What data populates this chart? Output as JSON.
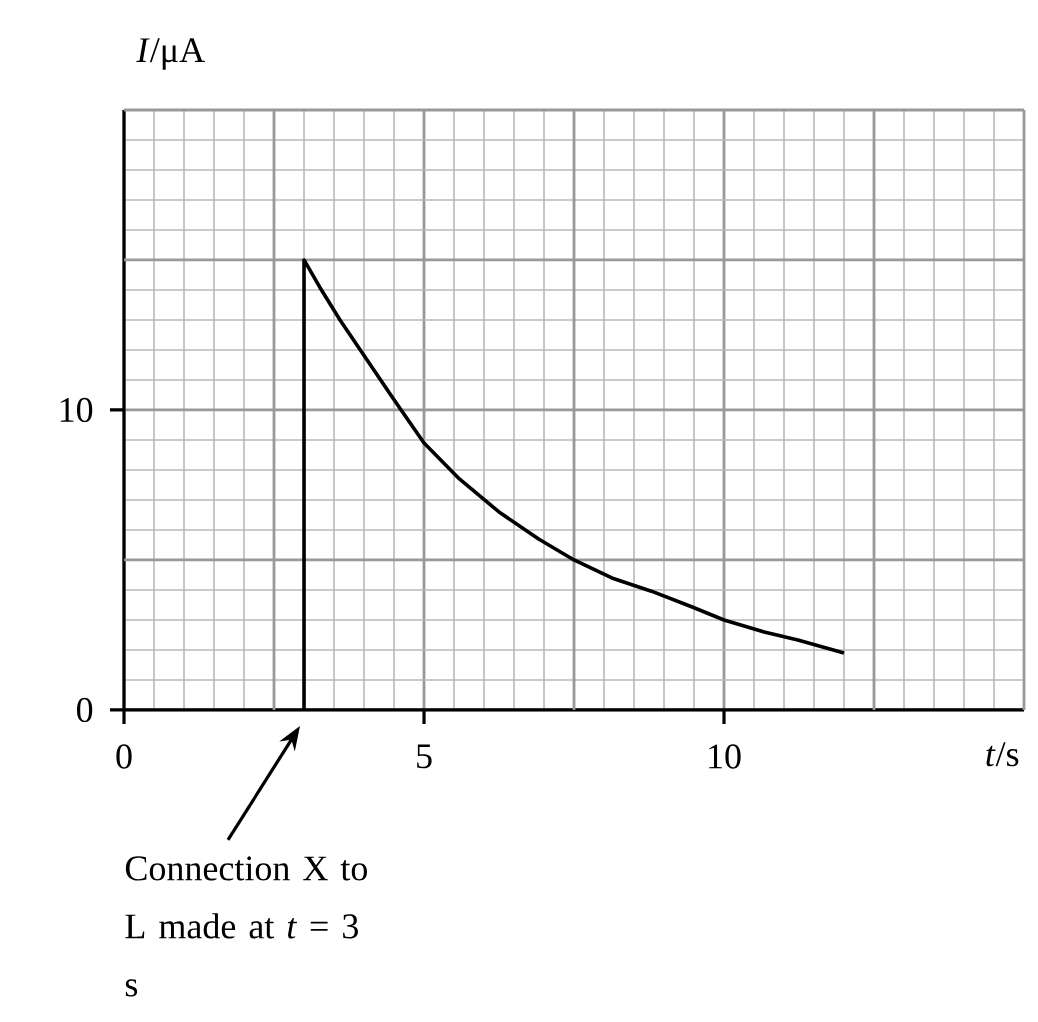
{
  "chart_data": {
    "type": "line",
    "xlabel": "*t*/s",
    "ylabel": "*I*/μA",
    "x": [
      3,
      3,
      3.26,
      3.6,
      4.04,
      4.48,
      5,
      5.59,
      6.25,
      6.91,
      7.5,
      8.13,
      8.79,
      9.46,
      10,
      10.67,
      11.23,
      12
    ],
    "series": [
      {
        "color": "#000000",
        "values": [
          0,
          15,
          14.1,
          13.0,
          11.7,
          10.4,
          8.9,
          7.7,
          6.6,
          5.7,
          5.0,
          4.4,
          3.96,
          3.44,
          3.0,
          2.6,
          2.33,
          1.9
        ]
      }
    ],
    "xlim": [
      0,
      15
    ],
    "ylim": [
      0,
      20
    ],
    "xticks": [
      0,
      5,
      10
    ],
    "yticks": [
      0,
      10
    ],
    "grid": true,
    "marker": "none",
    "line_style": "solid",
    "annotations": [
      "Connection X to L made at *t* = 3 s"
    ]
  }
}
